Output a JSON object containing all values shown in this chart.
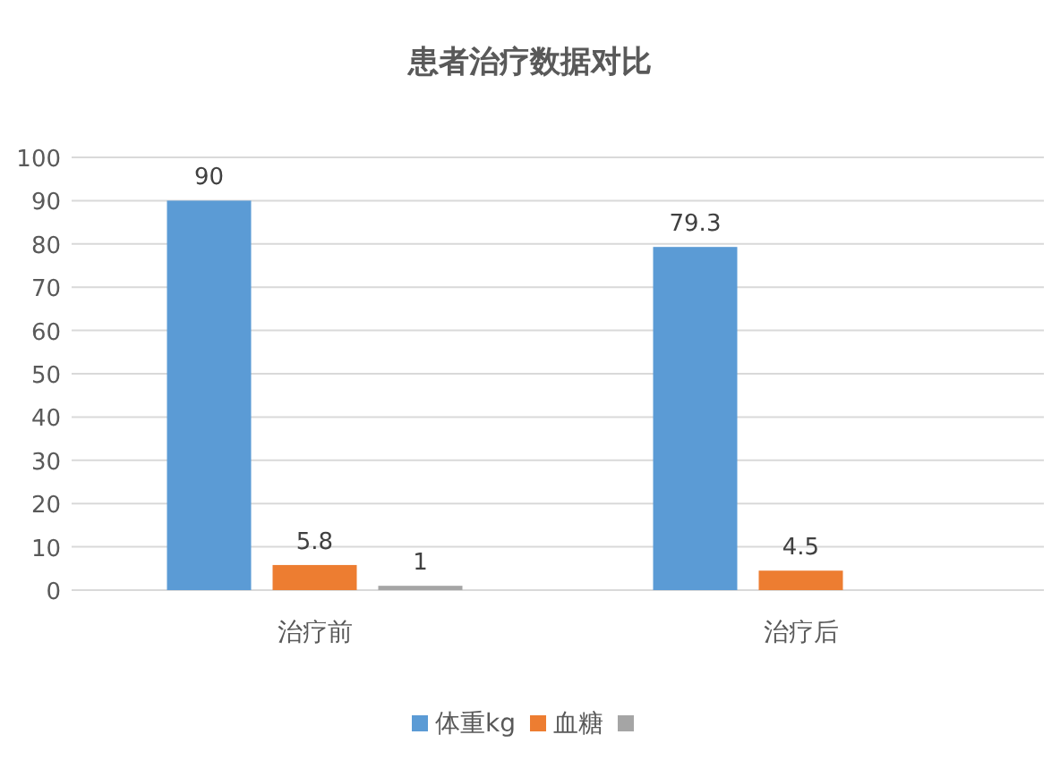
{
  "chart_data": {
    "type": "bar",
    "title": "患者治疗数据对比",
    "categories": [
      "治疗前",
      "治疗后"
    ],
    "series": [
      {
        "name": "体重kg",
        "color": "#5b9bd5",
        "values": [
          90,
          79.3
        ]
      },
      {
        "name": "血糖",
        "color": "#ed7d31",
        "values": [
          5.8,
          4.5
        ]
      },
      {
        "color": "#a5a5a5",
        "values": [
          1,
          null
        ]
      }
    ],
    "ylim": [
      0,
      100
    ],
    "yticks": [
      0,
      10,
      20,
      30,
      40,
      50,
      60,
      70,
      80,
      90,
      100
    ],
    "grid": "y",
    "legend": "bottom",
    "data_labels": true
  }
}
